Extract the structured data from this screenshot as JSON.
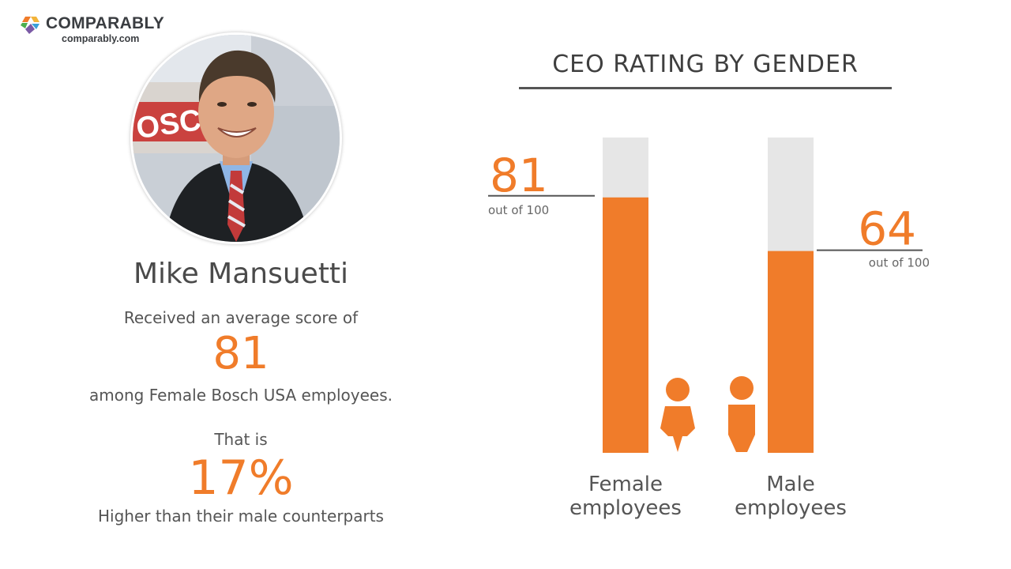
{
  "brand": {
    "name": "COMPARABLY",
    "site": "comparably.com",
    "colors": {
      "orange": "#f07c2a",
      "track": "#e6e6e6",
      "text": "#444444"
    }
  },
  "ceo": {
    "name": "Mike Mansuetti",
    "received": "Received an average score of",
    "score": "81",
    "among": "among Female Bosch USA employees.",
    "that_is": "That is",
    "pct": "17%",
    "higher": "Higher than their male counterparts",
    "photo_sign": "OSCH"
  },
  "chart_data": {
    "type": "bar",
    "title": "CEO RATING BY GENDER",
    "categories": [
      "Female employees",
      "Male employees"
    ],
    "category_lines": [
      [
        "Female",
        "employees"
      ],
      [
        "Male",
        "employees"
      ]
    ],
    "values": [
      81,
      64
    ],
    "value_labels": [
      "81",
      "64"
    ],
    "ylim": [
      0,
      100
    ],
    "sublabel": "out of 100",
    "icons": [
      "female-person-icon",
      "male-person-icon"
    ]
  }
}
